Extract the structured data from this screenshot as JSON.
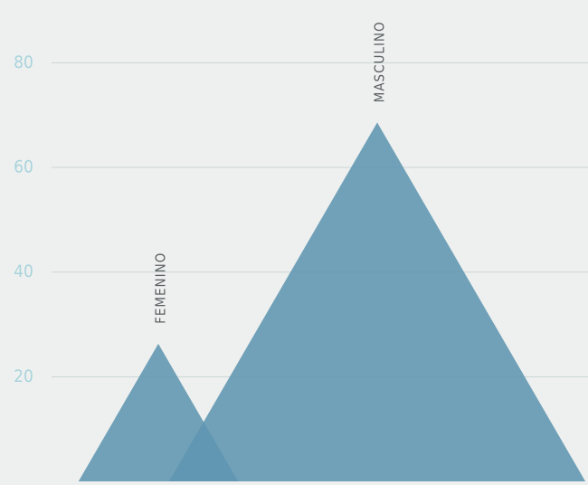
{
  "chart_data": {
    "type": "triangle",
    "categories": [
      "FEMENINO",
      "MASCULINO"
    ],
    "values": [
      26.3,
      68.6
    ],
    "color": "#5f95b1",
    "ylim": [
      0,
      92
    ],
    "yticks": [
      20,
      40,
      60,
      80
    ],
    "grid": true
  }
}
